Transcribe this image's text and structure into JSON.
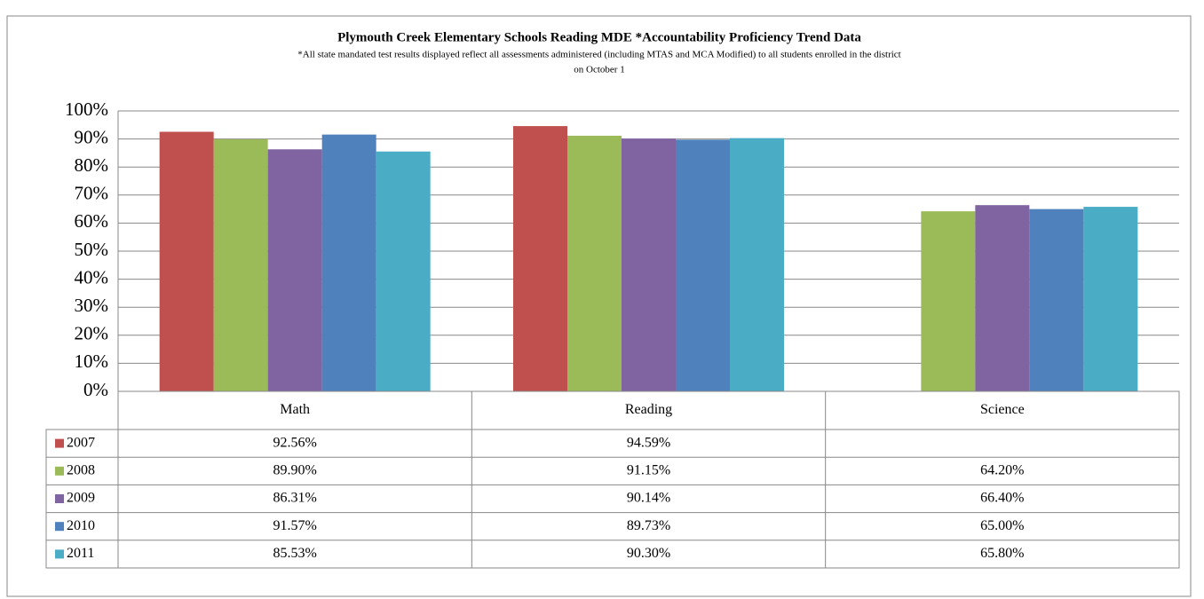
{
  "chart_data": {
    "type": "bar",
    "title": "Plymouth Creek Elementary Schools Reading MDE *Accountability Proficiency Trend Data",
    "subtitle": [
      "*All state mandated test results displayed reflect all assessments administered (including MTAS and MCA Modified) to all students enrolled in the district",
      "on October 1"
    ],
    "categories": [
      "Math",
      "Reading",
      "Science"
    ],
    "series": [
      {
        "name": "2007",
        "color": "#c0504d",
        "values": [
          92.56,
          94.59,
          null
        ],
        "value_labels": [
          "92.56%",
          "94.59%",
          null
        ]
      },
      {
        "name": "2008",
        "color": "#9bbb59",
        "values": [
          89.9,
          91.15,
          64.2
        ],
        "value_labels": [
          "89.90%",
          "91.15%",
          "64.20%"
        ]
      },
      {
        "name": "2009",
        "color": "#8064a2",
        "values": [
          86.31,
          90.14,
          66.4
        ],
        "value_labels": [
          "86.31%",
          "90.14%",
          "66.40%"
        ]
      },
      {
        "name": "2010",
        "color": "#4f81bd",
        "values": [
          91.57,
          89.73,
          65.0
        ],
        "value_labels": [
          "91.57%",
          "89.73%",
          "65.00%"
        ]
      },
      {
        "name": "2011",
        "color": "#4bacc6",
        "values": [
          85.53,
          90.3,
          65.8
        ],
        "value_labels": [
          "85.53%",
          "90.30%",
          "65.80%"
        ]
      }
    ],
    "ylim": [
      0,
      100
    ],
    "yticks": [
      {
        "value": 0,
        "label": "0%"
      },
      {
        "value": 10,
        "label": "10%"
      },
      {
        "value": 20,
        "label": "20%"
      },
      {
        "value": 30,
        "label": "30%"
      },
      {
        "value": 40,
        "label": "40%"
      },
      {
        "value": 50,
        "label": "50%"
      },
      {
        "value": 60,
        "label": "60%"
      },
      {
        "value": 70,
        "label": "70%"
      },
      {
        "value": 80,
        "label": "80%"
      },
      {
        "value": 90,
        "label": "90%"
      },
      {
        "value": 100,
        "label": "100%"
      }
    ],
    "grid": true
  }
}
